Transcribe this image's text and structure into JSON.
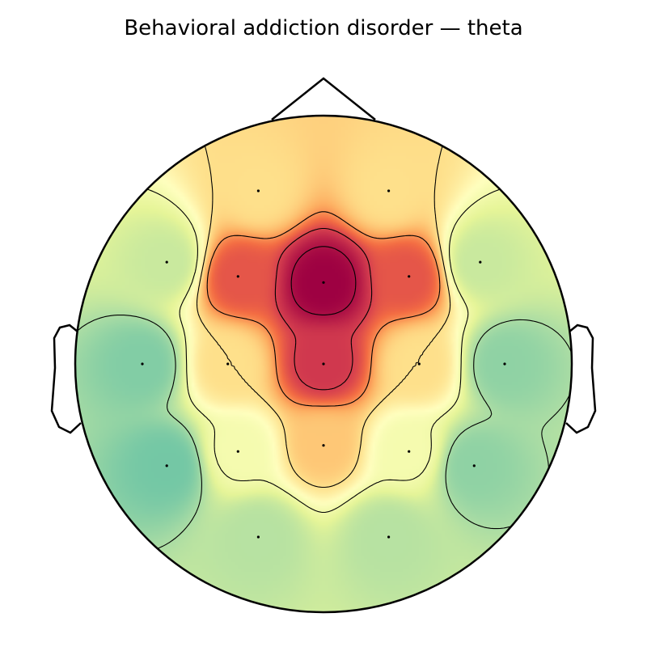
{
  "chart_data": {
    "type": "heatmap",
    "title": "Behavioral addiction disorder — theta",
    "colormap": "Spectral_r",
    "colorbar_visible": false,
    "sensors": [
      {
        "x": -0.32,
        "y": 0.85,
        "value": 0.5
      },
      {
        "x": 0.32,
        "y": 0.85,
        "value": 0.5
      },
      {
        "x": -0.77,
        "y": 0.5,
        "value": 0.25
      },
      {
        "x": -0.42,
        "y": 0.43,
        "value": 0.75
      },
      {
        "x": 0.0,
        "y": 0.4,
        "value": 1.0
      },
      {
        "x": 0.42,
        "y": 0.43,
        "value": 0.75
      },
      {
        "x": 0.77,
        "y": 0.5,
        "value": 0.25
      },
      {
        "x": -0.89,
        "y": 0.0,
        "value": 0.14
      },
      {
        "x": -0.47,
        "y": 0.0,
        "value": 0.5
      },
      {
        "x": 0.0,
        "y": 0.0,
        "value": 0.82
      },
      {
        "x": 0.47,
        "y": 0.0,
        "value": 0.5
      },
      {
        "x": 0.89,
        "y": 0.0,
        "value": 0.16
      },
      {
        "x": -0.77,
        "y": -0.5,
        "value": 0.12
      },
      {
        "x": -0.42,
        "y": -0.43,
        "value": 0.36
      },
      {
        "x": 0.0,
        "y": -0.4,
        "value": 0.55
      },
      {
        "x": 0.42,
        "y": -0.43,
        "value": 0.36
      },
      {
        "x": 0.74,
        "y": -0.5,
        "value": 0.16
      },
      {
        "x": -0.32,
        "y": -0.85,
        "value": 0.22
      },
      {
        "x": 0.32,
        "y": -0.85,
        "value": 0.22
      }
    ],
    "contour_levels": [
      0.2,
      0.35,
      0.5,
      0.65,
      0.8,
      0.95
    ]
  }
}
